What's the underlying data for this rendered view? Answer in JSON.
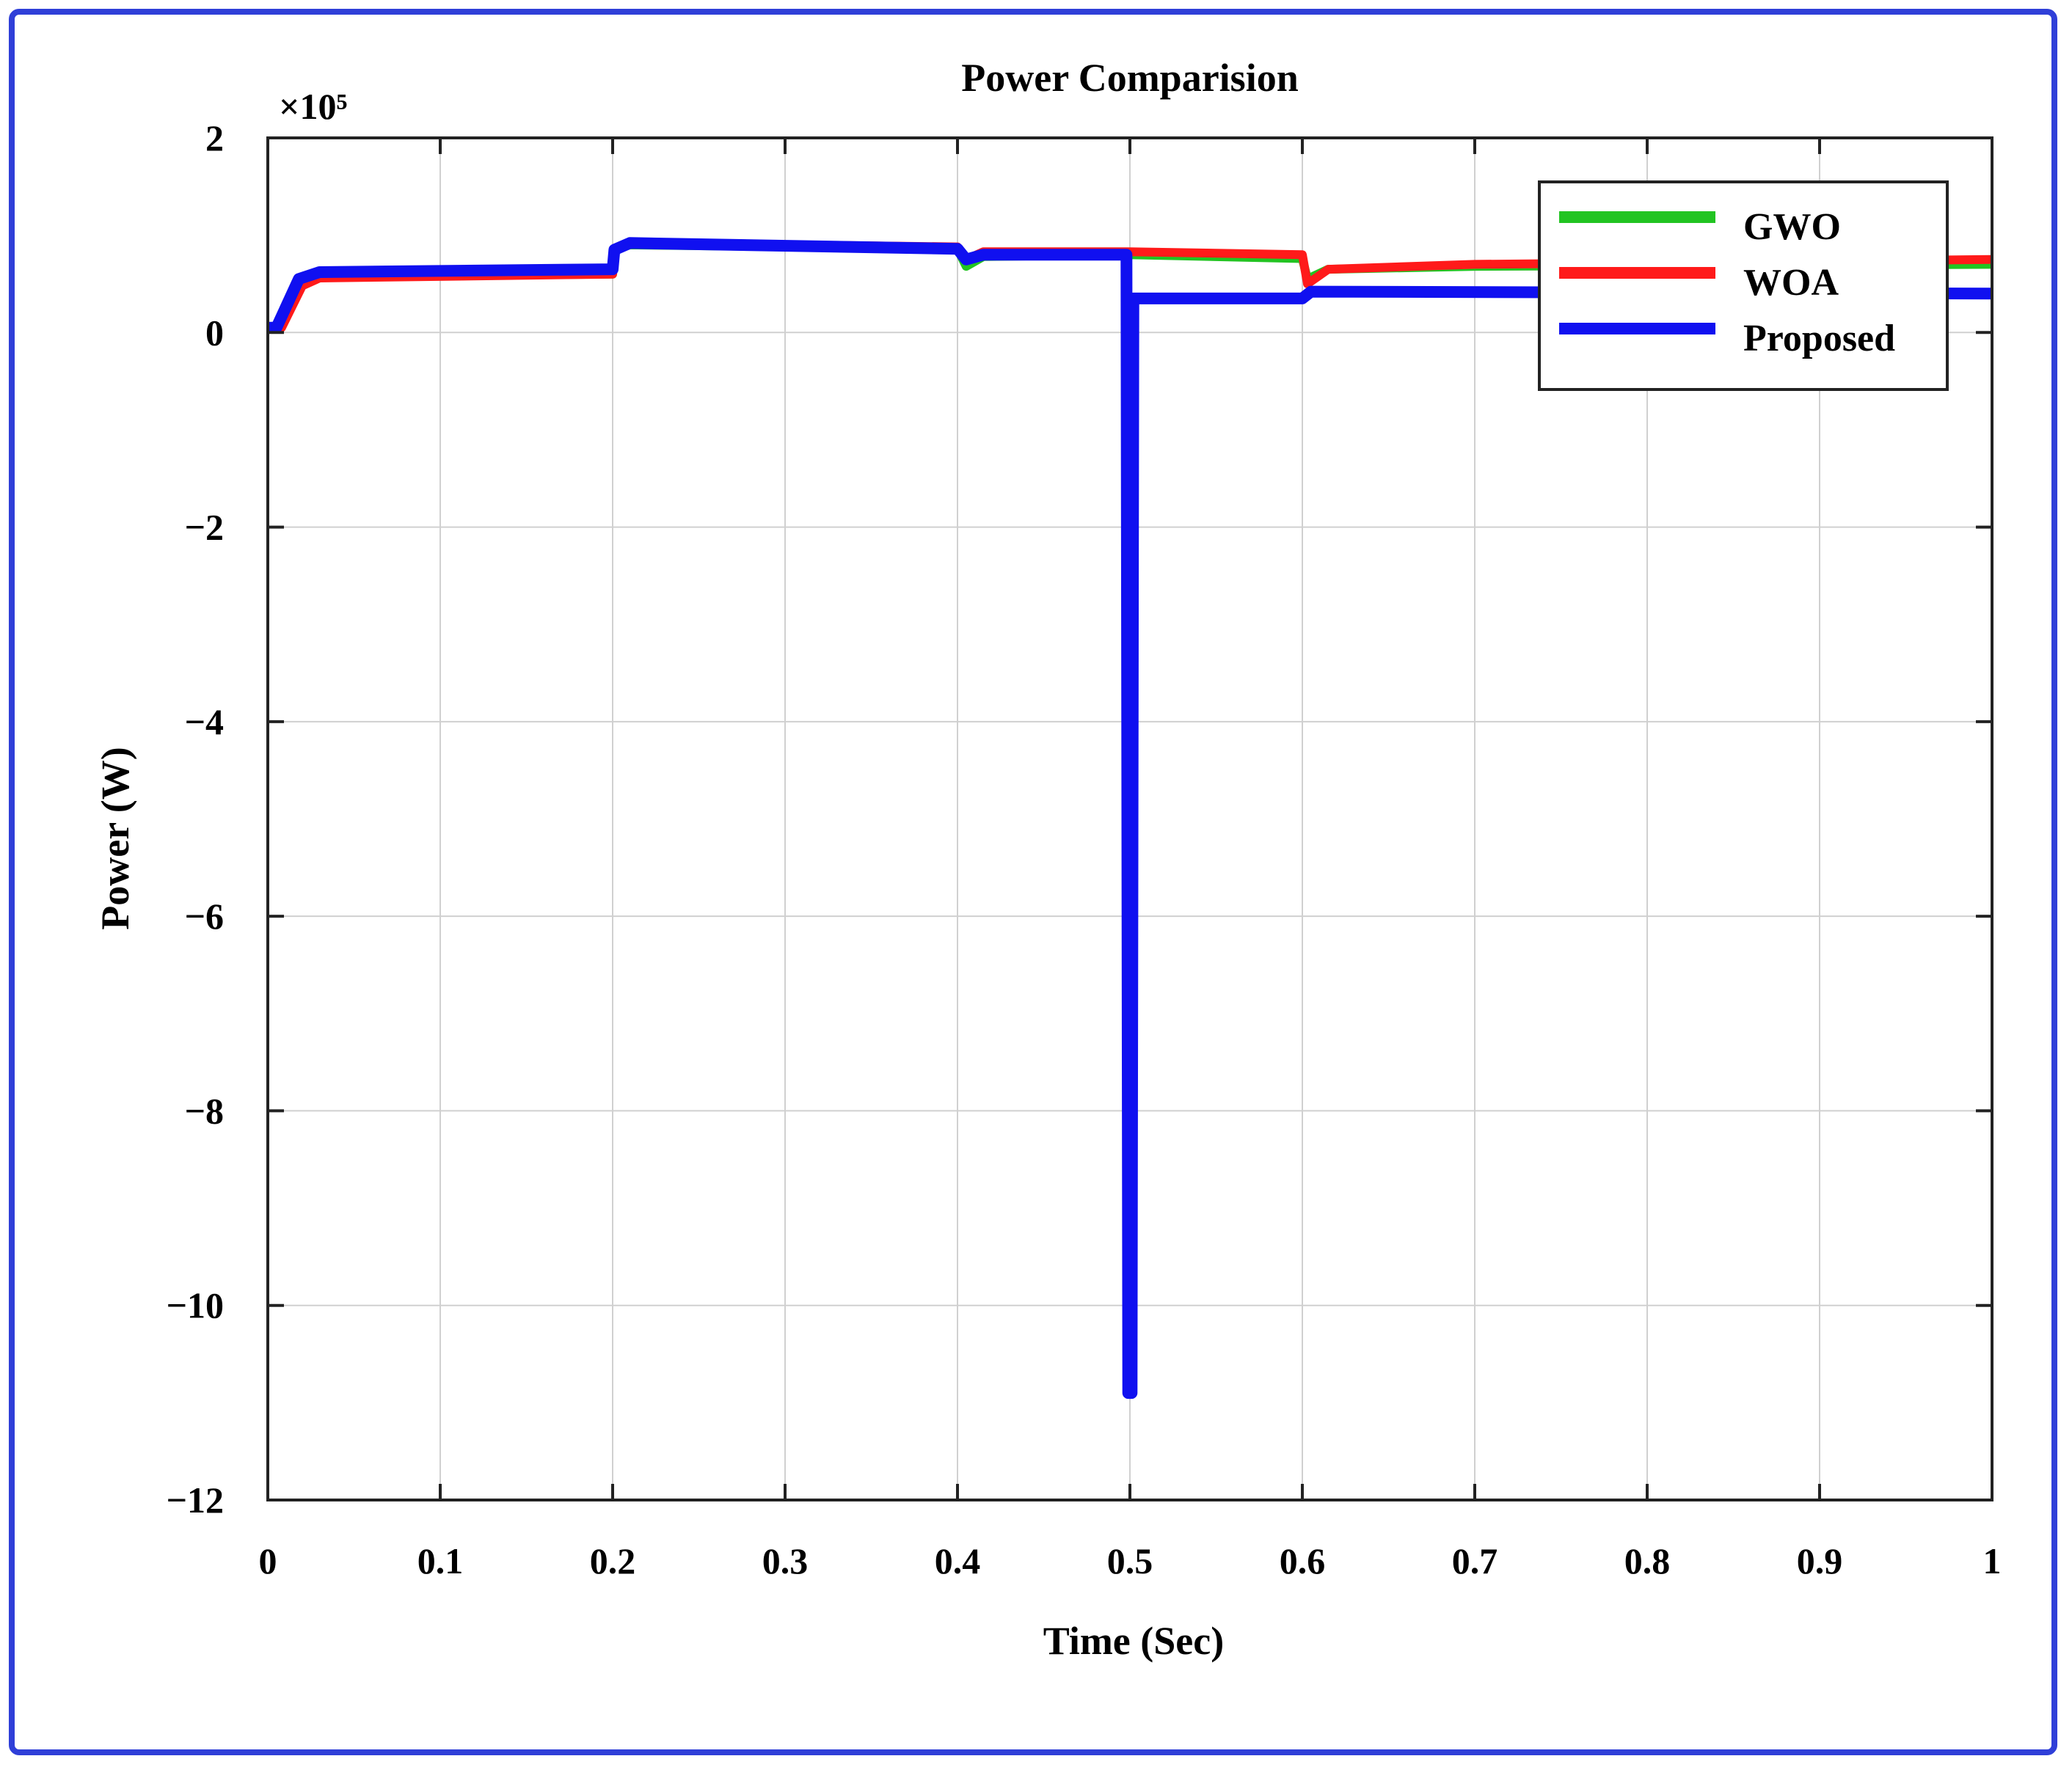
{
  "chart_data": {
    "type": "line",
    "title": "Power Comparision",
    "xlabel": "Time (Sec)",
    "ylabel": "Power (W)",
    "y_multiplier": "×10⁵",
    "xlim": [
      0,
      1
    ],
    "ylim": [
      -12,
      2
    ],
    "x_ticks": [
      "0",
      "0.1",
      "0.2",
      "0.3",
      "0.4",
      "0.5",
      "0.6",
      "0.7",
      "0.8",
      "0.9",
      "1"
    ],
    "y_ticks": [
      "2",
      "0",
      "−2",
      "−4",
      "−6",
      "−8",
      "−10",
      "−12"
    ],
    "grid": true,
    "legend_position": "top-right",
    "series": [
      {
        "name": "GWO",
        "color": "#22c422",
        "points": [
          [
            0,
            0.05
          ],
          [
            0.005,
            0.05
          ],
          [
            0.02,
            0.5
          ],
          [
            0.03,
            0.58
          ],
          [
            0.2,
            0.6
          ],
          [
            0.201,
            0.85
          ],
          [
            0.21,
            0.9
          ],
          [
            0.4,
            0.86
          ],
          [
            0.405,
            0.68
          ],
          [
            0.415,
            0.78
          ],
          [
            0.5,
            0.8
          ],
          [
            0.6,
            0.76
          ],
          [
            0.603,
            0.55
          ],
          [
            0.615,
            0.65
          ],
          [
            0.7,
            0.68
          ],
          [
            1.0,
            0.7
          ]
        ]
      },
      {
        "name": "WOA",
        "color": "#ff1a1a",
        "points": [
          [
            0,
            0.05
          ],
          [
            0.008,
            0.05
          ],
          [
            0.02,
            0.48
          ],
          [
            0.03,
            0.56
          ],
          [
            0.2,
            0.6
          ],
          [
            0.201,
            0.85
          ],
          [
            0.21,
            0.92
          ],
          [
            0.4,
            0.88
          ],
          [
            0.405,
            0.75
          ],
          [
            0.415,
            0.83
          ],
          [
            0.5,
            0.83
          ],
          [
            0.6,
            0.8
          ],
          [
            0.603,
            0.5
          ],
          [
            0.615,
            0.65
          ],
          [
            0.7,
            0.7
          ],
          [
            1.0,
            0.75
          ]
        ]
      },
      {
        "name": "Proposed",
        "color": "#1010f0",
        "points": [
          [
            0,
            0.05
          ],
          [
            0.005,
            0.05
          ],
          [
            0.018,
            0.55
          ],
          [
            0.03,
            0.62
          ],
          [
            0.2,
            0.65
          ],
          [
            0.201,
            0.85
          ],
          [
            0.21,
            0.92
          ],
          [
            0.4,
            0.86
          ],
          [
            0.405,
            0.75
          ],
          [
            0.415,
            0.8
          ],
          [
            0.498,
            0.8
          ],
          [
            0.499,
            -10.9
          ],
          [
            0.501,
            -10.9
          ],
          [
            0.502,
            0.35
          ],
          [
            0.51,
            0.35
          ],
          [
            0.6,
            0.35
          ],
          [
            0.605,
            0.42
          ],
          [
            1.0,
            0.4
          ]
        ]
      }
    ]
  }
}
